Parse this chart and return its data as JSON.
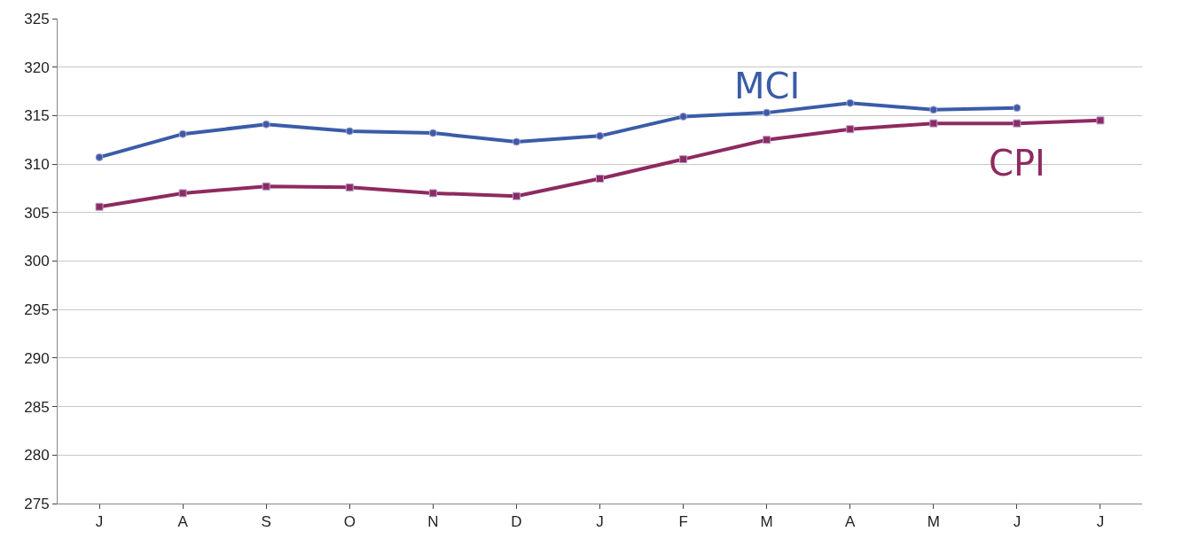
{
  "chart_data": {
    "type": "line",
    "categories": [
      "J",
      "A",
      "S",
      "O",
      "N",
      "D",
      "J",
      "F",
      "M",
      "A",
      "M",
      "J",
      "J"
    ],
    "series": [
      {
        "name": "MCI",
        "color": "#3a5ca8",
        "marker": "circle",
        "values": [
          310.7,
          313.1,
          314.1,
          313.4,
          313.2,
          312.3,
          312.9,
          314.9,
          315.3,
          316.3,
          315.6,
          315.8,
          null
        ]
      },
      {
        "name": "CPI",
        "color": "#8e2a60",
        "marker": "square",
        "values": [
          305.6,
          307.0,
          307.7,
          307.6,
          307.0,
          306.7,
          308.5,
          310.5,
          312.5,
          313.6,
          314.2,
          314.2,
          314.5
        ]
      }
    ],
    "ylim": [
      275,
      325
    ],
    "yticks": [
      275,
      280,
      285,
      290,
      295,
      300,
      305,
      310,
      315,
      320,
      325
    ],
    "grid": "y",
    "legend": false,
    "line_style": "solid"
  }
}
